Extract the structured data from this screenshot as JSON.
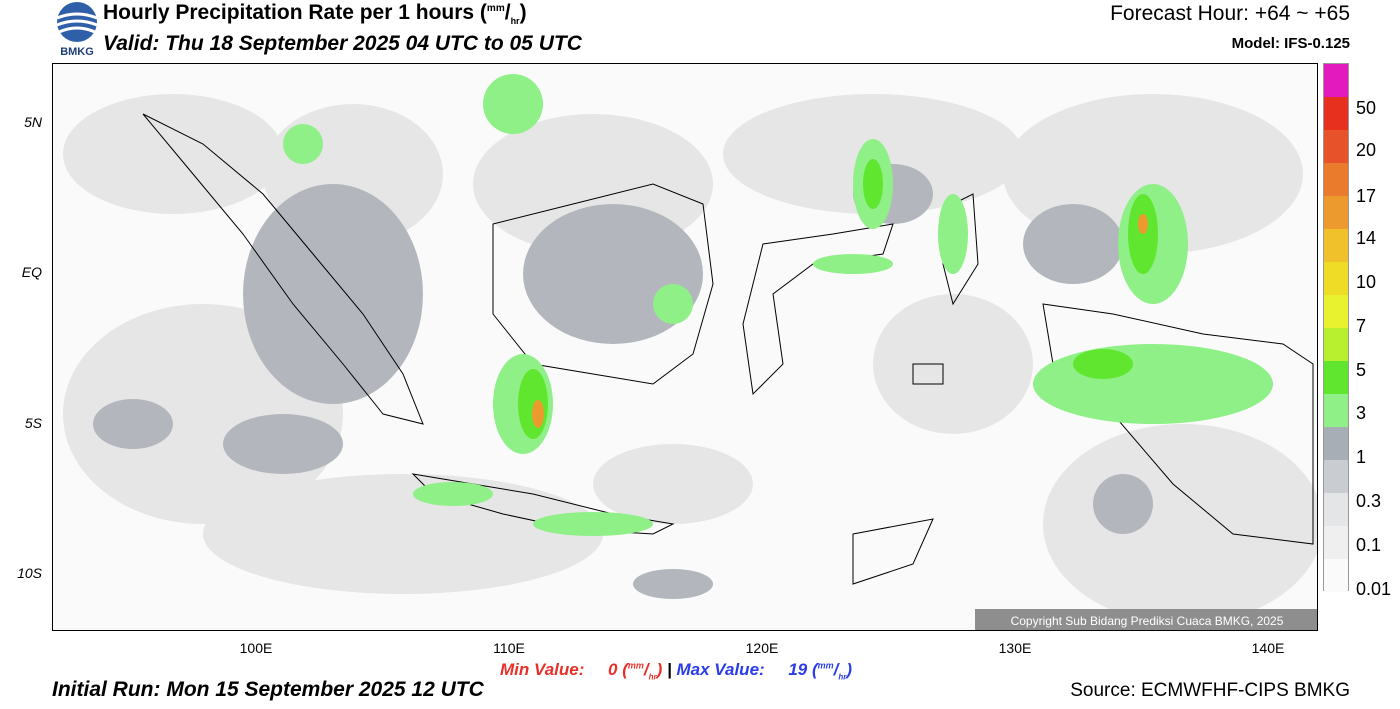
{
  "header": {
    "title": "Hourly Precipitation Rate per 1 hours",
    "title_unit_num": "mm",
    "title_unit_den": "hr",
    "valid": "Valid: Thu 18 September 2025 04 UTC to 05 UTC",
    "forecast_hour": "Forecast Hour: +64 ~ +65",
    "model": "Model: IFS-0.125",
    "logo_text": "BMKG"
  },
  "map": {
    "lat_labels": [
      "5N",
      "EQ",
      "5S",
      "10S"
    ],
    "lon_labels": [
      "100E",
      "110E",
      "120E",
      "130E",
      "140E"
    ],
    "copyright": "Copyright Sub Bidang Prediksi Cuaca BMKG, 2025"
  },
  "colorbar": {
    "colors": [
      "#e31bbf",
      "#e8301f",
      "#e8522b",
      "#ea7a2c",
      "#ec9a2d",
      "#f0c12a",
      "#efdc26",
      "#e9f22e",
      "#b8ef2e",
      "#61e62f",
      "#8ef087",
      "#a8aeb6",
      "#c9ccd1",
      "#e4e5e6",
      "#efefef",
      "#fafafa"
    ],
    "labels": [
      "50",
      "20",
      "17",
      "14",
      "10",
      "7",
      "5",
      "3",
      "1",
      "0.3",
      "0.1",
      "0.01"
    ]
  },
  "footer": {
    "min_label": "Min Value:",
    "min_value": "0",
    "max_label": "Max Value:",
    "max_value": "19",
    "unit_num": "mm",
    "unit_den": "hr",
    "initial_run": "Initial Run: Mon 15 September 2025 12 UTC",
    "source": "Source: ECMWFHF-CIPS BMKG",
    "min_color": "#e8302a",
    "max_color": "#2a3de8"
  }
}
